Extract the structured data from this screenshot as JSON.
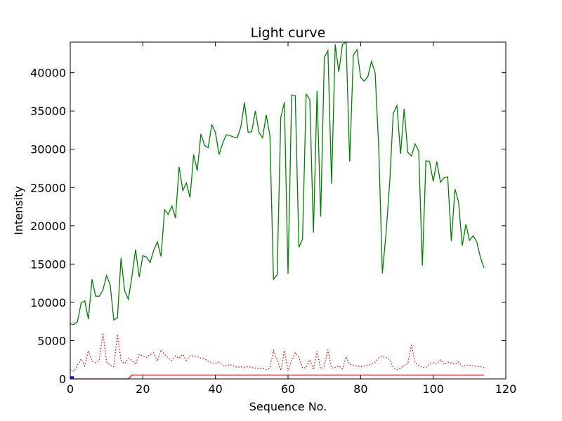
{
  "chart_data": {
    "type": "line",
    "title": "Light curve",
    "xlabel": "Sequence No.",
    "ylabel": "Intensity",
    "xlim": [
      0,
      120
    ],
    "ylim": [
      0,
      44000
    ],
    "xticks": [
      0,
      20,
      40,
      60,
      80,
      100,
      120
    ],
    "yticks": [
      0,
      5000,
      10000,
      15000,
      20000,
      25000,
      30000,
      35000,
      40000
    ],
    "grid": false,
    "legend": "none",
    "series": [
      {
        "color": "#008000",
        "style": "solid",
        "x": [
          0,
          1,
          2,
          3,
          4,
          5,
          6,
          7,
          8,
          9,
          10,
          11,
          12,
          13,
          14,
          15,
          16,
          17,
          18,
          19,
          20,
          21,
          22,
          23,
          24,
          25,
          26,
          27,
          28,
          29,
          30,
          31,
          32,
          33,
          34,
          35,
          36,
          37,
          38,
          39,
          40,
          41,
          42,
          43,
          44,
          45,
          46,
          47,
          48,
          49,
          50,
          51,
          52,
          53,
          54,
          55,
          56,
          57,
          58,
          59,
          60,
          61,
          62,
          63,
          64,
          65,
          66,
          67,
          68,
          69,
          70,
          71,
          72,
          73,
          74,
          75,
          76,
          77,
          78,
          79,
          80,
          81,
          82,
          83,
          84,
          85,
          86,
          87,
          88,
          89,
          90,
          91,
          92,
          93,
          94,
          95,
          96,
          97,
          98,
          99,
          100,
          101,
          102,
          103,
          104,
          105,
          106,
          107,
          108,
          109,
          110,
          111,
          112,
          113,
          114
        ],
        "y": [
          7200,
          7100,
          7500,
          9900,
          10200,
          7800,
          13000,
          10800,
          10800,
          11600,
          13500,
          12300,
          7700,
          8000,
          15800,
          11500,
          10400,
          13400,
          16900,
          13300,
          16100,
          15900,
          15200,
          16800,
          17900,
          16000,
          22100,
          21500,
          22600,
          21000,
          27700,
          24600,
          25600,
          23700,
          29300,
          27200,
          32000,
          30500,
          30200,
          33200,
          32200,
          29300,
          30800,
          31900,
          31800,
          31600,
          31500,
          32900,
          36100,
          32200,
          32300,
          35000,
          32200,
          31500,
          34500,
          31800,
          13000,
          13600,
          34200,
          36100,
          13700,
          37100,
          37000,
          17200,
          18300,
          37200,
          36500,
          19100,
          37600,
          21200,
          42000,
          42900,
          25500,
          43700,
          40100,
          43700,
          44000,
          28400,
          42300,
          43000,
          39400,
          38900,
          39500,
          41500,
          40000,
          30000,
          13800,
          19000,
          25600,
          34700,
          35700,
          29400,
          35300,
          29600,
          29100,
          30700,
          29800,
          14800,
          28500,
          28400,
          25800,
          28400,
          25700,
          26300,
          26400,
          18000,
          24800,
          23100,
          17400,
          20200,
          18100,
          18700,
          17900,
          15900,
          14500
        ]
      },
      {
        "color": "#ff0000",
        "style": "dotted",
        "x": [
          0,
          1,
          2,
          3,
          4,
          5,
          6,
          7,
          8,
          9,
          10,
          11,
          12,
          13,
          14,
          15,
          16,
          17,
          18,
          19,
          20,
          21,
          22,
          23,
          24,
          25,
          26,
          27,
          28,
          29,
          30,
          31,
          32,
          33,
          34,
          35,
          36,
          37,
          38,
          39,
          40,
          41,
          42,
          43,
          44,
          45,
          46,
          47,
          48,
          49,
          50,
          51,
          52,
          53,
          54,
          55,
          56,
          57,
          58,
          59,
          60,
          61,
          62,
          63,
          64,
          65,
          66,
          67,
          68,
          69,
          70,
          71,
          72,
          73,
          74,
          75,
          76,
          77,
          78,
          79,
          80,
          81,
          82,
          83,
          84,
          85,
          86,
          87,
          88,
          89,
          90,
          91,
          92,
          93,
          94,
          95,
          96,
          97,
          98,
          99,
          100,
          101,
          102,
          103,
          104,
          105,
          106,
          107,
          108,
          109,
          110,
          111,
          112,
          113,
          114
        ],
        "y": [
          1200,
          1000,
          1800,
          2600,
          1700,
          3700,
          2300,
          2100,
          2500,
          6000,
          2200,
          1800,
          1600,
          5800,
          2400,
          2000,
          2700,
          2400,
          1900,
          3200,
          3000,
          2800,
          3200,
          3400,
          2300,
          3800,
          3200,
          2700,
          2400,
          3000,
          2700,
          3200,
          2400,
          3000,
          3000,
          2900,
          2700,
          2600,
          2300,
          2100,
          2000,
          2200,
          1800,
          1700,
          1900,
          1700,
          1500,
          1600,
          1500,
          1600,
          1500,
          1400,
          1300,
          1400,
          1200,
          1400,
          3700,
          2500,
          1100,
          3700,
          1000,
          2500,
          3400,
          2800,
          1400,
          1500,
          2500,
          1200,
          3600,
          1300,
          1700,
          3800,
          1400,
          1500,
          1700,
          1300,
          2900,
          1900,
          1800,
          1700,
          1600,
          1700,
          1800,
          1900,
          2200,
          2800,
          2900,
          2800,
          2500,
          1500,
          1200,
          1400,
          1800,
          2000,
          4400,
          2200,
          1700,
          1500,
          1500,
          2000,
          2100,
          2000,
          2500,
          1900,
          2200,
          2100,
          1900,
          2200,
          1600,
          1800,
          1800,
          1700,
          1600,
          1600,
          1500
        ]
      },
      {
        "color": "#ff0000",
        "style": "solid",
        "x": [
          0,
          16,
          17,
          114
        ],
        "y": [
          0,
          0,
          500,
          500
        ]
      },
      {
        "color": "#0000ff",
        "style": "solid",
        "x": [
          0,
          1
        ],
        "y": [
          200,
          200
        ]
      }
    ]
  }
}
